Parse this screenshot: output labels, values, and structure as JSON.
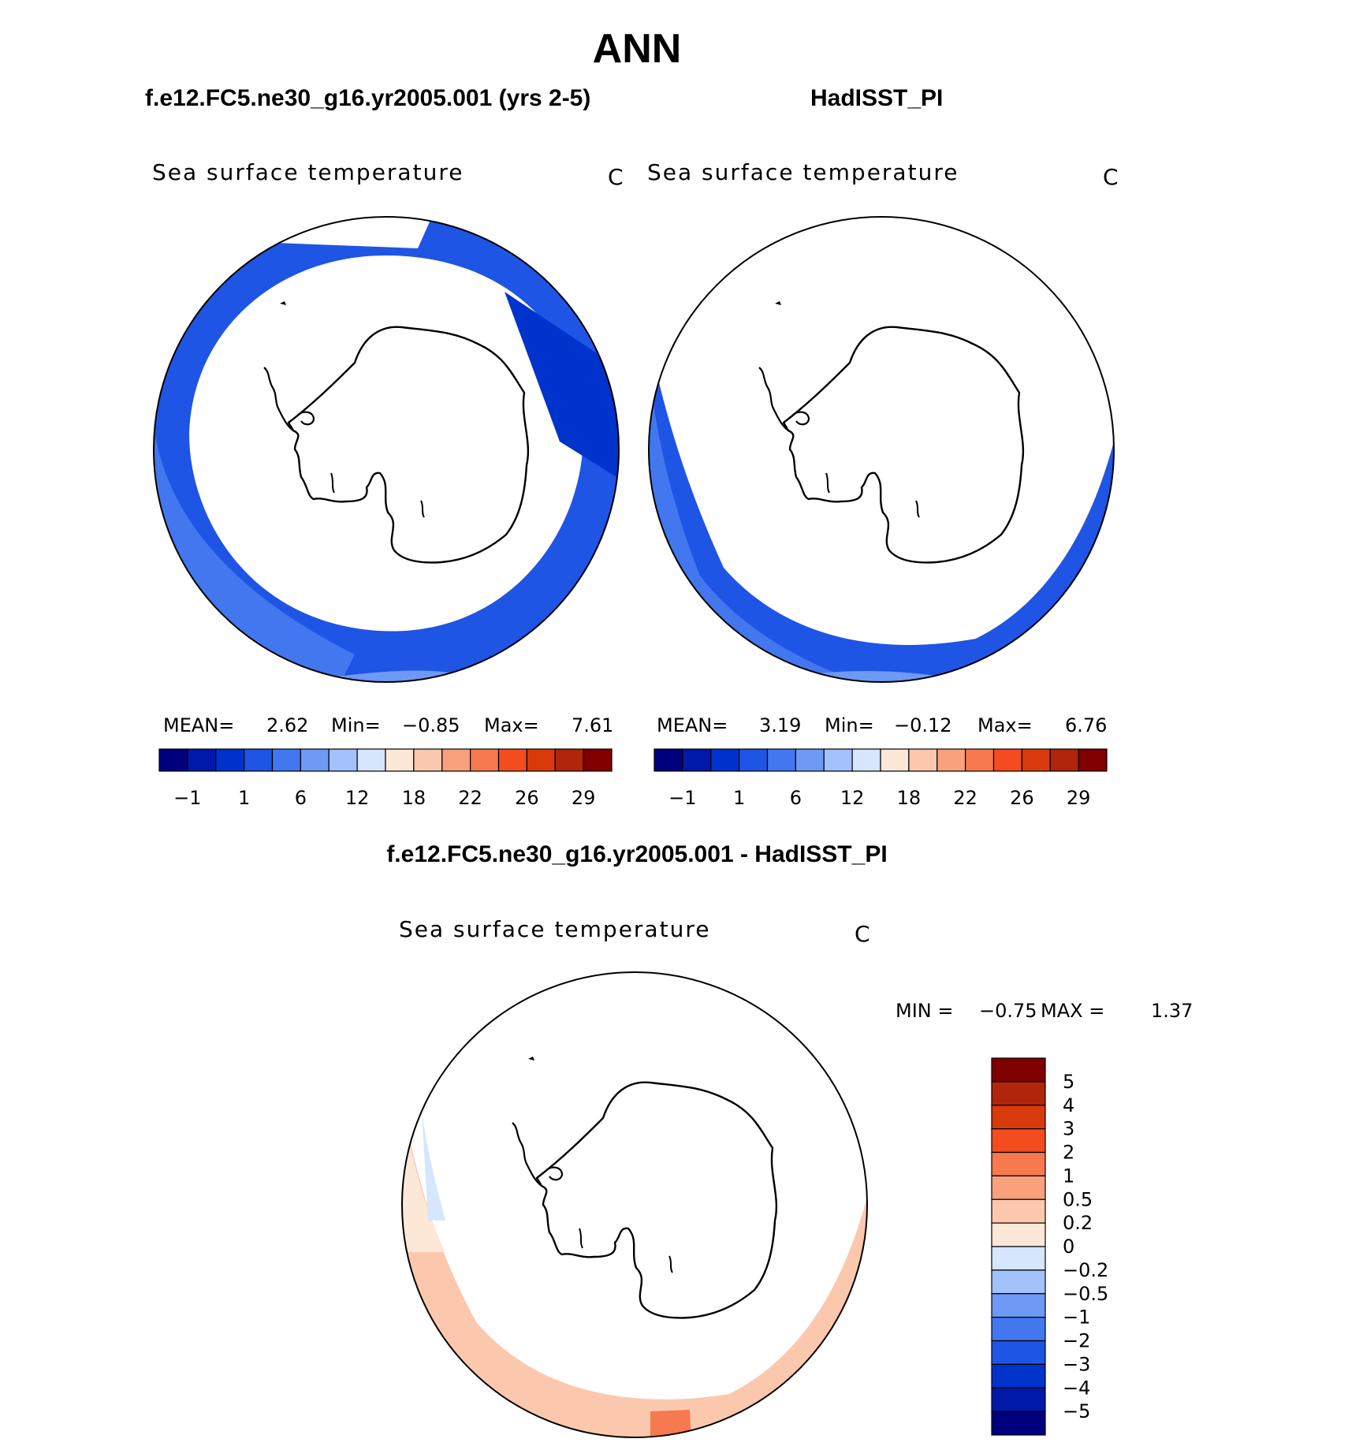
{
  "header": {
    "title": "ANN",
    "left_subtitle": "f.e12.FC5.ne30_g16.yr2005.001 (yrs 2-5)",
    "right_subtitle": "HadISST_PI",
    "diff_subtitle": "f.e12.FC5.ne30_g16.yr2005.001 - HadISST_PI"
  },
  "chart_data": [
    {
      "type": "heatmap",
      "projection": "south-polar-stereographic",
      "title": "Sea surface temperature",
      "unit": "C",
      "dataset": "f.e12.FC5.ne30_g16.yr2005.001 (yrs 2-5)",
      "stats": {
        "mean_label": "MEAN=",
        "mean": "2.62",
        "min_label": "Min=",
        "min": "−0.85",
        "max_label": "Max=",
        "max": "7.61"
      },
      "colorbar_ticks": [
        "−1",
        "1",
        "6",
        "12",
        "18",
        "22",
        "26",
        "29"
      ],
      "colors": [
        "#00007f",
        "#0019a8",
        "#0033cc",
        "#1f55e5",
        "#4277f0",
        "#6e99f5",
        "#a3c1fa",
        "#d6e6fc",
        "#fde7d6",
        "#fcc8ad",
        "#f9a07c",
        "#f6794f",
        "#f34c1f",
        "#d93a0c",
        "#b0250b",
        "#800000"
      ]
    },
    {
      "type": "heatmap",
      "projection": "south-polar-stereographic",
      "title": "Sea surface temperature",
      "unit": "C",
      "dataset": "HadISST_PI",
      "stats": {
        "mean_label": "MEAN=",
        "mean": "3.19",
        "min_label": "Min=",
        "min": "−0.12",
        "max_label": "Max=",
        "max": "6.76"
      },
      "colorbar_ticks": [
        "−1",
        "1",
        "6",
        "12",
        "18",
        "22",
        "26",
        "29"
      ],
      "colors": [
        "#00007f",
        "#0019a8",
        "#0033cc",
        "#1f55e5",
        "#4277f0",
        "#6e99f5",
        "#a3c1fa",
        "#d6e6fc",
        "#fde7d6",
        "#fcc8ad",
        "#f9a07c",
        "#f6794f",
        "#f34c1f",
        "#d93a0c",
        "#b0250b",
        "#800000"
      ]
    },
    {
      "type": "heatmap",
      "projection": "south-polar-stereographic",
      "title": "Sea surface temperature",
      "unit": "C",
      "dataset": "f.e12.FC5.ne30_g16.yr2005.001 - HadISST_PI",
      "stats": {
        "min_label": "MIN =",
        "min": "−0.75",
        "max_label": "MAX =",
        "max": "1.37"
      },
      "colorbar_ticks": [
        "5",
        "4",
        "3",
        "2",
        "1",
        "0.5",
        "0.2",
        "0",
        "−0.2",
        "−0.5",
        "−1",
        "−2",
        "−3",
        "−4",
        "−5"
      ],
      "colors": [
        "#800000",
        "#b0250b",
        "#d93a0c",
        "#f34c1f",
        "#f6794f",
        "#f9a07c",
        "#fcc8ad",
        "#fde7d6",
        "#d6e6fc",
        "#a3c1fa",
        "#6e99f5",
        "#4277f0",
        "#1f55e5",
        "#0033cc",
        "#0019a8",
        "#00007f"
      ]
    }
  ]
}
